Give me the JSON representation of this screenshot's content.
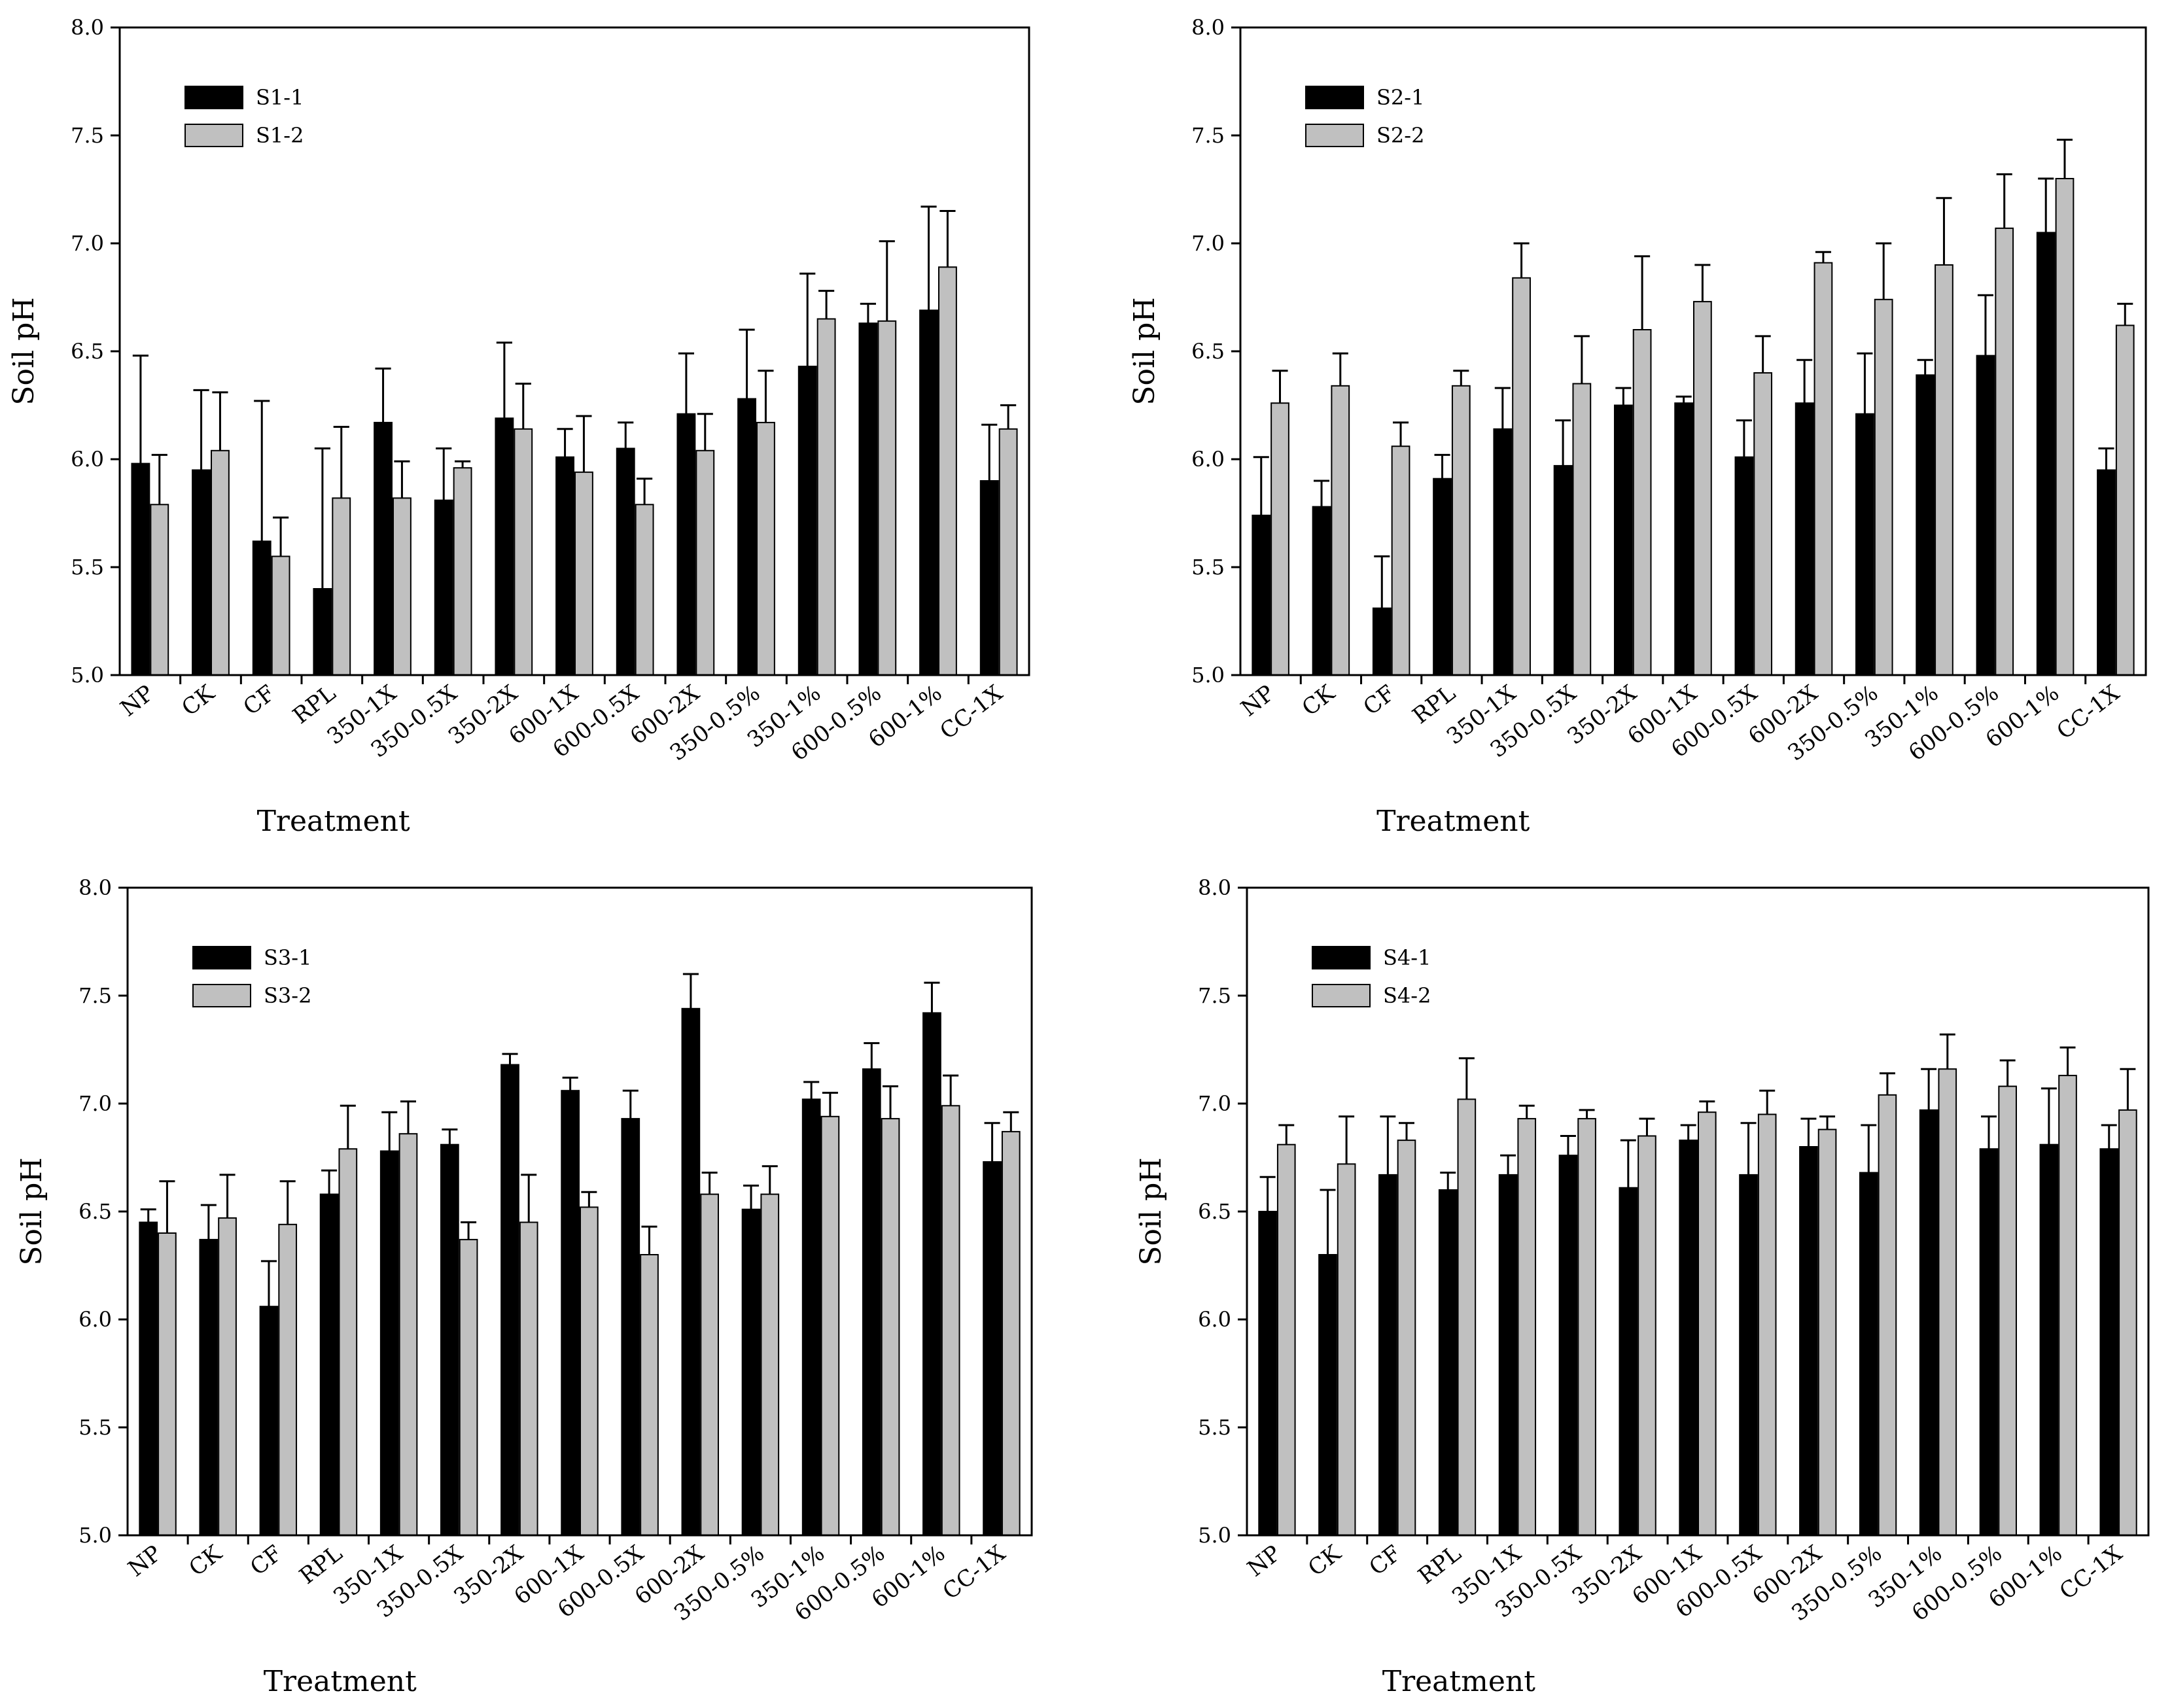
{
  "figure": {
    "charts": [
      {
        "id": "S1"
      },
      {
        "id": "S2"
      },
      {
        "id": "S3"
      },
      {
        "id": "S4"
      }
    ]
  },
  "colors": {
    "series1": "#000000",
    "series2": "#c0c0c0",
    "axis": "#000000"
  },
  "chart_data": [
    {
      "type": "bar",
      "title": "",
      "xlabel": "Treatment",
      "ylabel": "Soil pH",
      "ylim": [
        5.0,
        8.0
      ],
      "yticks": [
        "5.0",
        "5.5",
        "6.0",
        "6.5",
        "7.0",
        "7.5",
        "8.0"
      ],
      "grid": false,
      "legend": "top-left",
      "categories": [
        "NP",
        "CK",
        "CF",
        "RPL",
        "350-1X",
        "350-0.5X",
        "350-2X",
        "600-1X",
        "600-0.5X",
        "600-2X",
        "350-0.5%",
        "350-1%",
        "600-0.5%",
        "600-1%",
        "CC-1X"
      ],
      "series": [
        {
          "name": "S1-1",
          "values": [
            5.98,
            5.95,
            5.62,
            5.4,
            6.17,
            5.81,
            6.19,
            6.01,
            6.05,
            6.21,
            6.28,
            6.43,
            6.63,
            6.69,
            5.9
          ],
          "errors": [
            0.5,
            0.37,
            0.65,
            0.65,
            0.25,
            0.24,
            0.35,
            0.13,
            0.12,
            0.28,
            0.32,
            0.43,
            0.09,
            0.48,
            0.26
          ]
        },
        {
          "name": "S1-2",
          "values": [
            5.79,
            6.04,
            5.55,
            5.82,
            5.82,
            5.96,
            6.14,
            5.94,
            5.79,
            6.04,
            6.17,
            6.65,
            6.64,
            6.89,
            6.14
          ],
          "errors": [
            0.23,
            0.27,
            0.18,
            0.33,
            0.17,
            0.03,
            0.21,
            0.26,
            0.12,
            0.17,
            0.24,
            0.13,
            0.37,
            0.26,
            0.11
          ]
        }
      ]
    },
    {
      "type": "bar",
      "title": "",
      "xlabel": "Treatment",
      "ylabel": "Soil pH",
      "ylim": [
        5.0,
        8.0
      ],
      "yticks": [
        "5.0",
        "5.5",
        "6.0",
        "6.5",
        "7.0",
        "7.5",
        "8.0"
      ],
      "grid": false,
      "legend": "top-left",
      "categories": [
        "NP",
        "CK",
        "CF",
        "RPL",
        "350-1X",
        "350-0.5X",
        "350-2X",
        "600-1X",
        "600-0.5X",
        "600-2X",
        "350-0.5%",
        "350-1%",
        "600-0.5%",
        "600-1%",
        "CC-1X"
      ],
      "series": [
        {
          "name": "S2-1",
          "values": [
            5.74,
            5.78,
            5.31,
            5.91,
            6.14,
            5.97,
            6.25,
            6.26,
            6.01,
            6.26,
            6.21,
            6.39,
            6.48,
            7.05,
            5.95
          ],
          "errors": [
            0.27,
            0.12,
            0.24,
            0.11,
            0.19,
            0.21,
            0.08,
            0.03,
            0.17,
            0.2,
            0.28,
            0.07,
            0.28,
            0.25,
            0.1
          ]
        },
        {
          "name": "S2-2",
          "values": [
            6.26,
            6.34,
            6.06,
            6.34,
            6.84,
            6.35,
            6.6,
            6.73,
            6.4,
            6.91,
            6.74,
            6.9,
            7.07,
            7.3,
            6.62
          ],
          "errors": [
            0.15,
            0.15,
            0.11,
            0.07,
            0.16,
            0.22,
            0.34,
            0.17,
            0.17,
            0.05,
            0.26,
            0.31,
            0.25,
            0.18,
            0.1
          ]
        }
      ]
    },
    {
      "type": "bar",
      "title": "",
      "xlabel": "Treatment",
      "ylabel": "Soil pH",
      "ylim": [
        5.0,
        8.0
      ],
      "yticks": [
        "5.0",
        "5.5",
        "6.0",
        "6.5",
        "7.0",
        "7.5",
        "8.0"
      ],
      "grid": false,
      "legend": "top-left",
      "categories": [
        "NP",
        "CK",
        "CF",
        "RPL",
        "350-1X",
        "350-0.5X",
        "350-2X",
        "600-1X",
        "600-0.5X",
        "600-2X",
        "350-0.5%",
        "350-1%",
        "600-0.5%",
        "600-1%",
        "CC-1X"
      ],
      "series": [
        {
          "name": "S3-1",
          "values": [
            6.45,
            6.37,
            6.06,
            6.58,
            6.78,
            6.81,
            7.18,
            7.06,
            6.93,
            7.44,
            6.51,
            7.02,
            7.16,
            7.42,
            6.73
          ],
          "errors": [
            0.06,
            0.16,
            0.21,
            0.11,
            0.18,
            0.07,
            0.05,
            0.06,
            0.13,
            0.16,
            0.11,
            0.08,
            0.12,
            0.14,
            0.18
          ]
        },
        {
          "name": "S3-2",
          "values": [
            6.4,
            6.47,
            6.44,
            6.79,
            6.86,
            6.37,
            6.45,
            6.52,
            6.3,
            6.58,
            6.58,
            6.94,
            6.93,
            6.99,
            6.87
          ],
          "errors": [
            0.24,
            0.2,
            0.2,
            0.2,
            0.15,
            0.08,
            0.22,
            0.07,
            0.13,
            0.1,
            0.13,
            0.11,
            0.15,
            0.14,
            0.09
          ]
        }
      ]
    },
    {
      "type": "bar",
      "title": "",
      "xlabel": "Treatment",
      "ylabel": "Soil pH",
      "ylim": [
        5.0,
        8.0
      ],
      "yticks": [
        "5.0",
        "5.5",
        "6.0",
        "6.5",
        "7.0",
        "7.5",
        "8.0"
      ],
      "grid": false,
      "legend": "top-left",
      "categories": [
        "NP",
        "CK",
        "CF",
        "RPL",
        "350-1X",
        "350-0.5X",
        "350-2X",
        "600-1X",
        "600-0.5X",
        "600-2X",
        "350-0.5%",
        "350-1%",
        "600-0.5%",
        "600-1%",
        "CC-1X"
      ],
      "series": [
        {
          "name": "S4-1",
          "values": [
            6.5,
            6.3,
            6.67,
            6.6,
            6.67,
            6.76,
            6.61,
            6.83,
            6.67,
            6.8,
            6.68,
            6.97,
            6.79,
            6.81,
            6.79
          ],
          "errors": [
            0.16,
            0.3,
            0.27,
            0.08,
            0.09,
            0.09,
            0.22,
            0.07,
            0.24,
            0.13,
            0.22,
            0.19,
            0.15,
            0.26,
            0.11
          ]
        },
        {
          "name": "S4-2",
          "values": [
            6.81,
            6.72,
            6.83,
            7.02,
            6.93,
            6.93,
            6.85,
            6.96,
            6.95,
            6.88,
            7.04,
            7.16,
            7.08,
            7.13,
            6.97
          ],
          "errors": [
            0.09,
            0.22,
            0.08,
            0.19,
            0.06,
            0.04,
            0.08,
            0.05,
            0.11,
            0.06,
            0.1,
            0.16,
            0.12,
            0.13,
            0.19
          ]
        }
      ]
    }
  ]
}
